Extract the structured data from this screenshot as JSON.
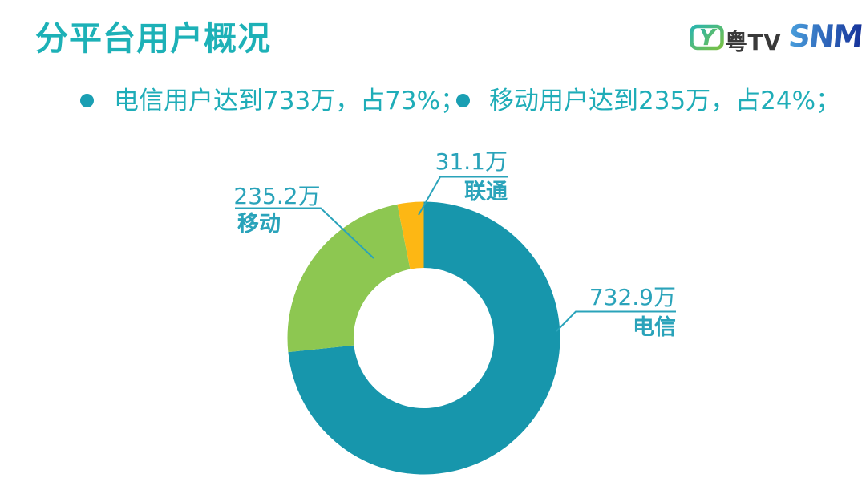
{
  "header": {
    "title": "分平台用户概况",
    "logos": {
      "yuetv": {
        "icon_letter": "Y",
        "text": "粤TV"
      },
      "snm": {
        "text": "SNM"
      }
    }
  },
  "bullets": [
    {
      "text": "电信用户达到733万，占73%；"
    },
    {
      "text": "移动用户达到235万，占24%；"
    }
  ],
  "chart_data": {
    "type": "pie",
    "subtype": "donut",
    "title": "",
    "categories": [
      "电信",
      "移动",
      "联通"
    ],
    "values": [
      732.9,
      235.2,
      31.1
    ],
    "unit": "万",
    "percentages": [
      73.3,
      23.5,
      3.1
    ],
    "colors": [
      "#1796ac",
      "#8dc751",
      "#fdb714"
    ],
    "start_angle_deg": 0,
    "direction": "clockwise",
    "inner_radius_ratio": 0.515,
    "legend": "none",
    "labels": [
      {
        "name": "电信",
        "value_label": "732.9万"
      },
      {
        "name": "移动",
        "value_label": "235.2万"
      },
      {
        "name": "联通",
        "value_label": "31.1万"
      }
    ]
  },
  "colors": {
    "title": "#1db1b7",
    "bullet_text": "#1fadb8",
    "bullet_dot": "#1a9fb3",
    "chart_label": "#2aa3ba",
    "leader_line": "#2aa3ba",
    "telecom_teal": "#1796ac",
    "mobile_green": "#8dc751",
    "unicom_yellow": "#fdb714",
    "yuetv_text": "#3a3a3a",
    "yuetv_icon_from": "#2ab5ae",
    "yuetv_icon_to": "#7ac143",
    "snm_blue_from": "#4aa0dd",
    "snm_blue_to": "#16329a"
  }
}
